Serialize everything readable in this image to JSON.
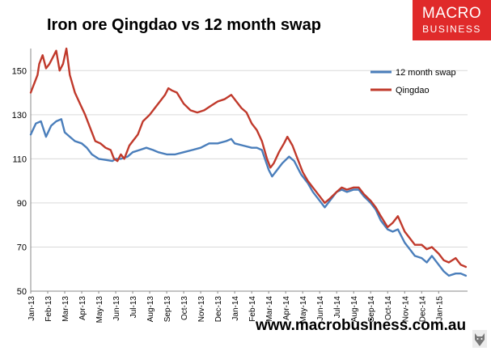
{
  "header": {
    "title": "Iron ore Qingdao vs 12 month swap"
  },
  "logo": {
    "line1": "MACRO",
    "line2": "BUSINESS",
    "color": "#e02a2a",
    "icon": "wolf-icon"
  },
  "footer": {
    "url": "www.macrobusiness.com.au"
  },
  "chart_data": {
    "type": "line",
    "title": "Iron ore Qingdao vs 12 month swap",
    "xlabel": "",
    "ylabel": "",
    "ylim": [
      50,
      160
    ],
    "yticks": [
      50,
      70,
      90,
      110,
      130,
      150
    ],
    "xticks": [
      "Jan-13",
      "Feb-13",
      "Mar-13",
      "Apr-13",
      "May-13",
      "Jun-13",
      "Jul-13",
      "Aug-13",
      "Sep-13",
      "Oct-13",
      "Nov-13",
      "Dec-13",
      "Jan-14",
      "Feb-14",
      "Mar-14",
      "Apr-14",
      "May-14",
      "Jun-14",
      "Jul-14",
      "Aug-14",
      "Sep-14",
      "Oct-14",
      "Nov-14",
      "Dec-14",
      "Jan-15"
    ],
    "grid": true,
    "legend": "top-right",
    "x_unit": "months since Jan-13",
    "series": [
      {
        "name": "12 month swap",
        "color": "#4a7ebb",
        "points": [
          [
            0,
            121
          ],
          [
            0.3,
            126
          ],
          [
            0.6,
            127
          ],
          [
            0.9,
            120
          ],
          [
            1.2,
            125
          ],
          [
            1.5,
            127
          ],
          [
            1.8,
            128
          ],
          [
            2.0,
            122
          ],
          [
            2.3,
            120
          ],
          [
            2.6,
            118
          ],
          [
            3.0,
            117
          ],
          [
            3.3,
            115
          ],
          [
            3.6,
            112
          ],
          [
            4.0,
            110
          ],
          [
            4.4,
            109.5
          ],
          [
            4.8,
            109
          ],
          [
            5.0,
            110
          ],
          [
            5.3,
            110
          ],
          [
            5.7,
            111
          ],
          [
            6.0,
            113
          ],
          [
            6.4,
            114
          ],
          [
            6.8,
            115
          ],
          [
            7.2,
            114
          ],
          [
            7.5,
            113
          ],
          [
            8.0,
            112
          ],
          [
            8.5,
            112
          ],
          [
            9.0,
            113
          ],
          [
            9.5,
            114
          ],
          [
            10.0,
            115
          ],
          [
            10.5,
            117
          ],
          [
            11.0,
            117
          ],
          [
            11.5,
            118
          ],
          [
            11.8,
            119
          ],
          [
            12.0,
            117
          ],
          [
            12.5,
            116
          ],
          [
            13.0,
            115
          ],
          [
            13.3,
            115
          ],
          [
            13.6,
            114
          ],
          [
            14.0,
            105
          ],
          [
            14.2,
            102
          ],
          [
            14.5,
            105
          ],
          [
            14.8,
            108
          ],
          [
            15.2,
            111
          ],
          [
            15.5,
            109
          ],
          [
            15.9,
            103
          ],
          [
            16.3,
            99
          ],
          [
            16.6,
            95
          ],
          [
            17.0,
            91
          ],
          [
            17.3,
            88
          ],
          [
            17.6,
            91
          ],
          [
            18.0,
            95
          ],
          [
            18.3,
            96
          ],
          [
            18.6,
            95
          ],
          [
            19.0,
            96
          ],
          [
            19.3,
            96
          ],
          [
            19.6,
            93
          ],
          [
            20.0,
            90
          ],
          [
            20.3,
            87
          ],
          [
            20.6,
            82
          ],
          [
            21.0,
            78
          ],
          [
            21.3,
            77
          ],
          [
            21.6,
            78
          ],
          [
            22.0,
            72
          ],
          [
            22.3,
            69
          ],
          [
            22.6,
            66
          ],
          [
            23.0,
            65
          ],
          [
            23.3,
            63
          ],
          [
            23.6,
            66
          ],
          [
            24.0,
            62
          ],
          [
            24.3,
            59
          ],
          [
            24.6,
            57
          ],
          [
            25.0,
            58
          ],
          [
            25.3,
            58
          ],
          [
            25.6,
            57
          ]
        ]
      },
      {
        "name": "Qingdao",
        "color": "#c0392b",
        "points": [
          [
            0,
            140
          ],
          [
            0.2,
            144
          ],
          [
            0.4,
            148
          ],
          [
            0.5,
            153
          ],
          [
            0.7,
            157
          ],
          [
            0.9,
            151
          ],
          [
            1.1,
            153
          ],
          [
            1.3,
            156
          ],
          [
            1.5,
            159
          ],
          [
            1.7,
            150
          ],
          [
            1.9,
            153
          ],
          [
            2.1,
            160
          ],
          [
            2.3,
            148
          ],
          [
            2.6,
            140
          ],
          [
            2.9,
            135
          ],
          [
            3.2,
            130
          ],
          [
            3.5,
            124
          ],
          [
            3.8,
            118
          ],
          [
            4.1,
            117
          ],
          [
            4.4,
            115
          ],
          [
            4.7,
            114
          ],
          [
            4.9,
            110
          ],
          [
            5.1,
            109
          ],
          [
            5.3,
            112
          ],
          [
            5.5,
            110
          ],
          [
            5.8,
            116
          ],
          [
            6.0,
            118
          ],
          [
            6.3,
            121
          ],
          [
            6.6,
            127
          ],
          [
            7.0,
            130
          ],
          [
            7.3,
            133
          ],
          [
            7.6,
            136
          ],
          [
            7.9,
            139
          ],
          [
            8.1,
            142
          ],
          [
            8.3,
            141
          ],
          [
            8.6,
            140
          ],
          [
            9.0,
            135
          ],
          [
            9.4,
            132
          ],
          [
            9.8,
            131
          ],
          [
            10.2,
            132
          ],
          [
            10.6,
            134
          ],
          [
            11.0,
            136
          ],
          [
            11.4,
            137
          ],
          [
            11.8,
            139
          ],
          [
            12.1,
            136
          ],
          [
            12.4,
            133
          ],
          [
            12.7,
            131
          ],
          [
            13.0,
            126
          ],
          [
            13.3,
            123
          ],
          [
            13.6,
            118
          ],
          [
            13.9,
            110
          ],
          [
            14.1,
            106
          ],
          [
            14.3,
            108
          ],
          [
            14.6,
            113
          ],
          [
            14.9,
            117
          ],
          [
            15.1,
            120
          ],
          [
            15.4,
            116
          ],
          [
            15.7,
            110
          ],
          [
            16.0,
            104
          ],
          [
            16.3,
            100
          ],
          [
            16.6,
            97
          ],
          [
            17.0,
            93
          ],
          [
            17.3,
            90
          ],
          [
            17.6,
            92
          ],
          [
            18.0,
            95
          ],
          [
            18.3,
            97
          ],
          [
            18.6,
            96
          ],
          [
            19.0,
            97
          ],
          [
            19.3,
            97
          ],
          [
            19.6,
            94
          ],
          [
            20.0,
            91
          ],
          [
            20.3,
            88
          ],
          [
            20.6,
            84
          ],
          [
            21.0,
            79
          ],
          [
            21.3,
            81
          ],
          [
            21.6,
            84
          ],
          [
            22.0,
            77
          ],
          [
            22.3,
            74
          ],
          [
            22.6,
            71
          ],
          [
            23.0,
            71
          ],
          [
            23.3,
            69
          ],
          [
            23.6,
            70
          ],
          [
            24.0,
            67
          ],
          [
            24.3,
            64
          ],
          [
            24.6,
            63
          ],
          [
            25.0,
            65
          ],
          [
            25.3,
            62
          ],
          [
            25.6,
            61
          ]
        ]
      }
    ]
  }
}
